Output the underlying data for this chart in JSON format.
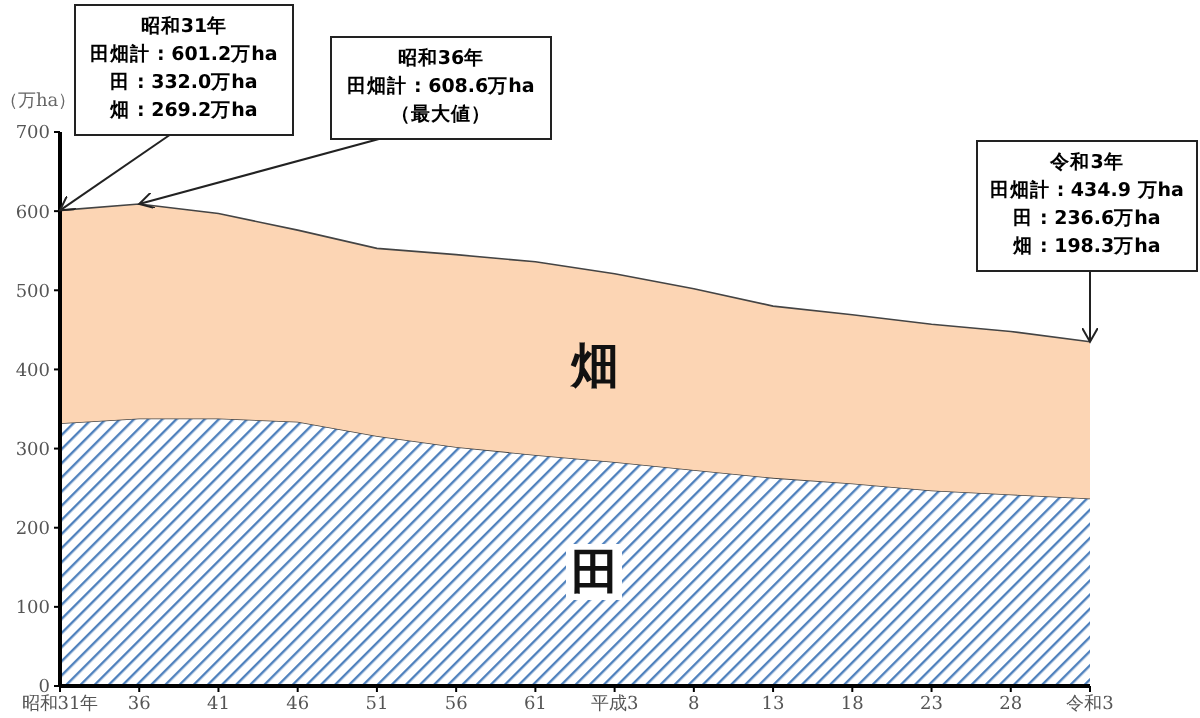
{
  "chart_data": {
    "type": "area",
    "stacked": true,
    "ylabel": "（万ha）",
    "categories": [
      "昭和31年",
      "36",
      "41",
      "46",
      "51",
      "56",
      "61",
      "平成3",
      "8",
      "13",
      "18",
      "23",
      "28",
      "令和3"
    ],
    "series": [
      {
        "name": "田",
        "color": "#4f81bd",
        "values": [
          332,
          338,
          338,
          334,
          316,
          302,
          292,
          283,
          273,
          263,
          256,
          247,
          242,
          237
        ]
      },
      {
        "name": "畑",
        "color": "#fcd5b4",
        "values": [
          269,
          271,
          259,
          242,
          237,
          243,
          244,
          238,
          229,
          217,
          213,
          210,
          206,
          198
        ]
      }
    ],
    "ylim": [
      0,
      700
    ],
    "yticks": [
      0,
      100,
      200,
      300,
      400,
      500,
      600,
      700
    ],
    "grid": false,
    "annotations": [
      {
        "text": "昭和31年田畑計 : 601.2万ha田 : 332.0万ha畑 : 269.2万ha",
        "x": "昭和31年",
        "y": 601
      },
      {
        "text": "昭和36年田畑計 : 608.6万ha（最大値）",
        "x": "36",
        "y": 609
      },
      {
        "text": "令和3年田畑計 : 434.9 万ha田 : 236.6万ha畑 : 198.3万ha",
        "x": "令和3",
        "y": 435
      }
    ]
  }
}
